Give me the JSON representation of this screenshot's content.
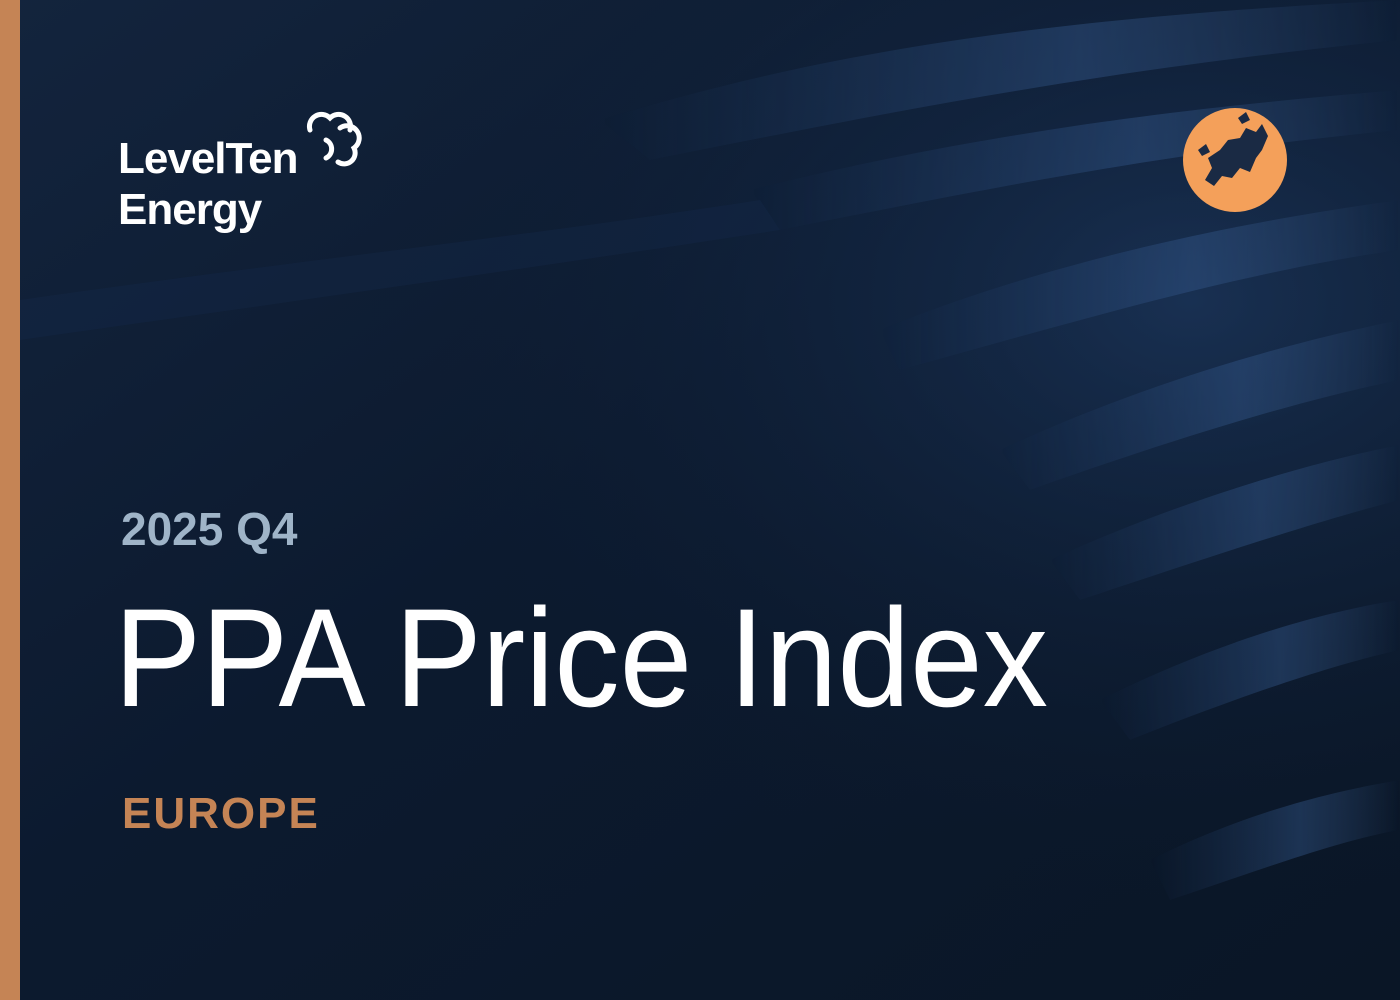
{
  "logo": {
    "line1": "LevelTen",
    "line2": "Energy"
  },
  "cover": {
    "period": "2025 Q4",
    "title": "PPA Price Index",
    "region": "EUROPE"
  }
}
